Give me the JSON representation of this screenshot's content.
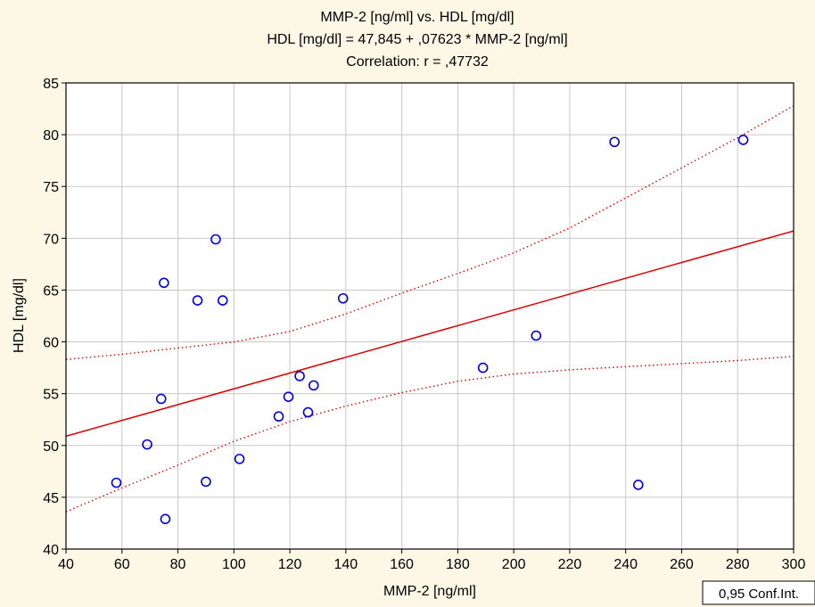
{
  "chart_data": {
    "type": "scatter",
    "title_lines": [
      "MMP-2 [ng/ml] vs. HDL [mg/dl]",
      "HDL [mg/dl] = 47,845 + ,07623 * MMP-2 [ng/ml]",
      "Correlation: r = ,47732"
    ],
    "xlabel": "MMP-2 [ng/ml]",
    "ylabel": "HDL [mg/dl]",
    "xlim": [
      40,
      300
    ],
    "ylim": [
      40,
      85
    ],
    "x_ticks": [
      40,
      60,
      80,
      100,
      120,
      140,
      160,
      180,
      200,
      220,
      240,
      260,
      280,
      300
    ],
    "y_ticks": [
      40,
      45,
      50,
      55,
      60,
      65,
      70,
      75,
      80,
      85
    ],
    "grid": true,
    "points": [
      {
        "x": 58,
        "y": 46.4
      },
      {
        "x": 69,
        "y": 50.1
      },
      {
        "x": 74,
        "y": 54.5
      },
      {
        "x": 75,
        "y": 65.7
      },
      {
        "x": 75.5,
        "y": 42.9
      },
      {
        "x": 87,
        "y": 64.0
      },
      {
        "x": 90,
        "y": 46.5
      },
      {
        "x": 93.5,
        "y": 69.9
      },
      {
        "x": 96,
        "y": 64.0
      },
      {
        "x": 102,
        "y": 48.7
      },
      {
        "x": 116,
        "y": 52.8
      },
      {
        "x": 119.5,
        "y": 54.7
      },
      {
        "x": 123.5,
        "y": 56.7
      },
      {
        "x": 126.5,
        "y": 53.2
      },
      {
        "x": 128.5,
        "y": 55.8
      },
      {
        "x": 139,
        "y": 64.2
      },
      {
        "x": 189,
        "y": 57.5
      },
      {
        "x": 208,
        "y": 60.6
      },
      {
        "x": 236,
        "y": 79.3
      },
      {
        "x": 244.5,
        "y": 46.2
      },
      {
        "x": 282,
        "y": 79.5
      }
    ],
    "regression": {
      "intercept": 47.845,
      "slope": 0.07623
    },
    "confidence_band": {
      "x": [
        40,
        60,
        80,
        100,
        120,
        140,
        160,
        180,
        200,
        220,
        240,
        260,
        280,
        300
      ],
      "upper": [
        58.3,
        58.8,
        59.4,
        60.0,
        61.0,
        62.7,
        64.7,
        66.6,
        68.6,
        71.0,
        73.9,
        76.8,
        79.7,
        82.8
      ],
      "lower": [
        43.6,
        45.9,
        48.1,
        50.4,
        52.3,
        53.8,
        55.1,
        56.2,
        56.9,
        57.3,
        57.6,
        57.9,
        58.2,
        58.6
      ]
    },
    "legend_label": "0,95 Conf.Int.",
    "colors": {
      "points": "#0000dd",
      "fit": "#dd0000",
      "grid": "#c8c8c8",
      "background": "#fdf7e6"
    }
  }
}
